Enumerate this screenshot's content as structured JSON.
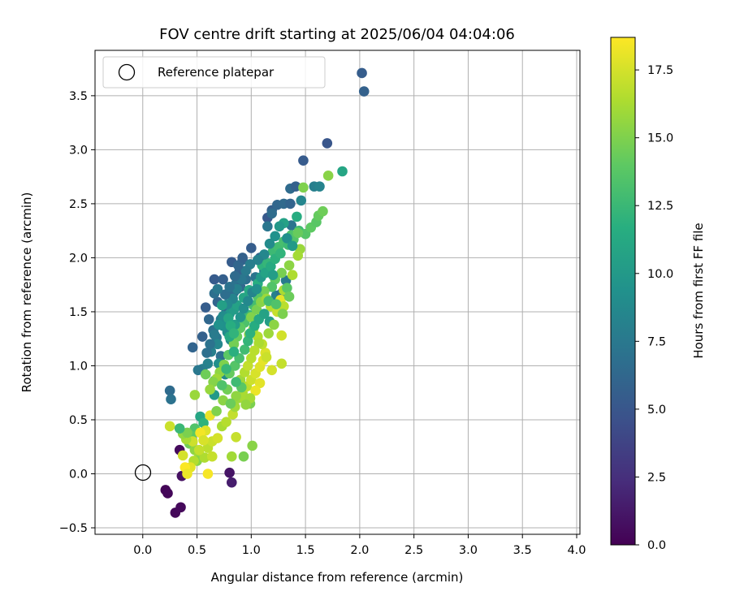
{
  "chart_data": {
    "type": "scatter",
    "title": "FOV centre drift starting at 2025/06/04 04:04:06",
    "xlabel": "Angular distance from reference (arcmin)",
    "ylabel": "Rotation from reference (arcmin)",
    "xlim": [
      -0.44,
      4.03
    ],
    "ylim": [
      -0.56,
      3.92
    ],
    "xticks": [
      "0.0",
      "0.5",
      "1.0",
      "1.5",
      "2.0",
      "2.5",
      "3.0",
      "3.5",
      "4.0"
    ],
    "yticks": [
      "−0.5",
      "0.0",
      "0.5",
      "1.0",
      "1.5",
      "2.0",
      "2.5",
      "3.0",
      "3.5"
    ],
    "grid": true,
    "legend": {
      "placement": "top-left",
      "entries": [
        "Reference platepar"
      ]
    },
    "reference_point": {
      "x": 0.0,
      "y": 0.0
    },
    "colorbar": {
      "label": "Hours from first FF file",
      "colormap": "viridis",
      "range": [
        0.0,
        18.7
      ],
      "ticks": [
        "0.0",
        "2.5",
        "5.0",
        "7.5",
        "10.0",
        "12.5",
        "15.0",
        "17.5"
      ]
    },
    "points": [
      [
        0.21,
        -0.15,
        0.2
      ],
      [
        0.23,
        -0.18,
        0.3
      ],
      [
        0.3,
        -0.36,
        0.3
      ],
      [
        0.35,
        -0.31,
        0.4
      ],
      [
        0.34,
        0.22,
        0.5
      ],
      [
        0.36,
        -0.02,
        0.8
      ],
      [
        0.8,
        0.01,
        1.0
      ],
      [
        0.82,
        -0.08,
        1.5
      ],
      [
        0.25,
        0.77,
        6.5
      ],
      [
        0.26,
        0.69,
        7.0
      ],
      [
        0.46,
        1.17,
        6.0
      ],
      [
        0.55,
        1.27,
        5.8
      ],
      [
        0.58,
        1.54,
        5.5
      ],
      [
        0.66,
        1.8,
        5.3
      ],
      [
        0.74,
        1.8,
        5.6
      ],
      [
        0.82,
        1.96,
        5.4
      ],
      [
        0.89,
        1.87,
        5.7
      ],
      [
        0.92,
        1.98,
        5.9
      ],
      [
        1.0,
        2.09,
        5.5
      ],
      [
        1.08,
        2.0,
        6.0
      ],
      [
        1.15,
        2.37,
        5.2
      ],
      [
        1.19,
        2.44,
        5.6
      ],
      [
        1.24,
        2.49,
        6.2
      ],
      [
        1.3,
        2.5,
        6.4
      ],
      [
        1.36,
        2.5,
        6.0
      ],
      [
        1.36,
        2.64,
        6.5
      ],
      [
        1.41,
        2.66,
        5.8
      ],
      [
        1.48,
        2.9,
        5.3
      ],
      [
        1.7,
        3.06,
        5.0
      ],
      [
        2.02,
        3.71,
        5.5
      ],
      [
        2.04,
        3.54,
        5.8
      ],
      [
        1.58,
        2.66,
        8.0
      ],
      [
        1.63,
        2.66,
        8.3
      ],
      [
        1.37,
        2.3,
        7.2
      ],
      [
        1.46,
        2.53,
        8.5
      ],
      [
        1.84,
        2.8,
        11.0
      ],
      [
        0.65,
        1.33,
        7.0
      ],
      [
        0.68,
        1.26,
        7.3
      ],
      [
        0.72,
        1.43,
        7.8
      ],
      [
        0.63,
        1.13,
        8.0
      ],
      [
        0.6,
        1.02,
        8.3
      ],
      [
        0.55,
        0.97,
        8.0
      ],
      [
        0.51,
        0.96,
        7.5
      ],
      [
        0.72,
        1.09,
        6.8
      ],
      [
        0.77,
        1.5,
        6.5
      ],
      [
        0.84,
        1.68,
        6.6
      ],
      [
        0.86,
        1.76,
        7.0
      ],
      [
        0.9,
        1.73,
        6.3
      ],
      [
        0.95,
        1.8,
        6.8
      ],
      [
        1.04,
        1.82,
        7.2
      ],
      [
        1.12,
        1.88,
        7.5
      ],
      [
        1.19,
        1.73,
        7.8
      ],
      [
        1.23,
        1.65,
        8.0
      ],
      [
        1.28,
        1.67,
        7.0
      ],
      [
        1.32,
        1.79,
        7.6
      ],
      [
        0.78,
        1.31,
        8.8
      ],
      [
        0.81,
        1.24,
        9.0
      ],
      [
        0.7,
        1.02,
        9.2
      ],
      [
        0.66,
        0.86,
        9.5
      ],
      [
        0.76,
        0.92,
        8.9
      ],
      [
        0.66,
        0.73,
        10.0
      ],
      [
        0.69,
        1.2,
        8.6
      ],
      [
        0.74,
        1.37,
        9.3
      ],
      [
        0.8,
        1.48,
        9.8
      ],
      [
        0.84,
        1.52,
        10.2
      ],
      [
        0.87,
        1.56,
        10.6
      ],
      [
        0.93,
        1.63,
        11.0
      ],
      [
        0.98,
        1.7,
        11.3
      ],
      [
        1.06,
        1.76,
        11.7
      ],
      [
        1.1,
        1.93,
        12.0
      ],
      [
        1.15,
        1.95,
        12.3
      ],
      [
        1.2,
        2.06,
        12.6
      ],
      [
        1.25,
        2.1,
        12.9
      ],
      [
        1.3,
        2.15,
        13.1
      ],
      [
        1.37,
        2.21,
        13.3
      ],
      [
        1.44,
        2.25,
        12.8
      ],
      [
        1.42,
        2.38,
        11.5
      ],
      [
        1.5,
        2.22,
        13.6
      ],
      [
        1.55,
        2.28,
        14.0
      ],
      [
        1.6,
        2.33,
        13.8
      ],
      [
        1.62,
        2.39,
        14.2
      ],
      [
        1.66,
        2.43,
        14.5
      ],
      [
        1.71,
        2.76,
        15.3
      ],
      [
        1.48,
        2.65,
        15.0
      ],
      [
        1.45,
        2.08,
        15.8
      ],
      [
        1.43,
        2.02,
        16.1
      ],
      [
        1.38,
        1.84,
        16.4
      ],
      [
        1.35,
        1.93,
        15.4
      ],
      [
        1.28,
        1.86,
        14.8
      ],
      [
        1.22,
        1.8,
        14.1
      ],
      [
        1.19,
        1.73,
        13.5
      ],
      [
        1.12,
        1.69,
        14.6
      ],
      [
        1.06,
        1.64,
        13.7
      ],
      [
        1.02,
        1.56,
        13.0
      ],
      [
        0.98,
        1.47,
        12.5
      ],
      [
        0.94,
        1.4,
        13.3
      ],
      [
        0.9,
        1.35,
        14.0
      ],
      [
        0.87,
        1.27,
        14.3
      ],
      [
        0.84,
        1.2,
        14.7
      ],
      [
        0.79,
        1.1,
        13.9
      ],
      [
        0.75,
        1.01,
        15.0
      ],
      [
        0.71,
        0.94,
        15.5
      ],
      [
        0.68,
        0.88,
        16.0
      ],
      [
        0.65,
        0.85,
        15.2
      ],
      [
        0.62,
        0.78,
        15.7
      ],
      [
        0.58,
        0.92,
        14.5
      ],
      [
        0.53,
        0.53,
        11.0
      ],
      [
        0.56,
        0.47,
        12.0
      ],
      [
        0.48,
        0.42,
        13.5
      ],
      [
        0.45,
        0.35,
        14.0
      ],
      [
        0.43,
        0.28,
        14.6
      ],
      [
        0.48,
        0.22,
        15.5
      ],
      [
        0.52,
        0.18,
        16.0
      ],
      [
        0.5,
        0.12,
        15.2
      ],
      [
        0.57,
        0.15,
        16.4
      ],
      [
        0.6,
        0.24,
        16.8
      ],
      [
        0.64,
        0.3,
        17.2
      ],
      [
        0.69,
        0.33,
        17.5
      ],
      [
        0.73,
        0.44,
        16.2
      ],
      [
        0.77,
        0.48,
        16.6
      ],
      [
        0.83,
        0.55,
        17.0
      ],
      [
        0.85,
        0.62,
        16.0
      ],
      [
        0.88,
        0.7,
        15.8
      ],
      [
        0.92,
        0.75,
        16.3
      ],
      [
        0.96,
        0.81,
        16.8
      ],
      [
        1.0,
        0.87,
        17.3
      ],
      [
        1.04,
        0.93,
        17.6
      ],
      [
        1.08,
        0.99,
        17.8
      ],
      [
        1.11,
        1.05,
        18.0
      ],
      [
        1.13,
        1.12,
        17.7
      ],
      [
        1.1,
        1.2,
        16.9
      ],
      [
        1.06,
        1.27,
        16.5
      ],
      [
        1.02,
        1.34,
        16.1
      ],
      [
        0.98,
        1.29,
        15.6
      ],
      [
        1.0,
        1.45,
        15.1
      ],
      [
        1.05,
        1.52,
        14.8
      ],
      [
        1.09,
        1.59,
        15.3
      ],
      [
        1.14,
        1.62,
        15.9
      ],
      [
        1.18,
        1.55,
        16.6
      ],
      [
        1.24,
        1.5,
        17.1
      ],
      [
        1.27,
        1.61,
        18.0
      ],
      [
        1.3,
        1.7,
        16.3
      ],
      [
        1.28,
        1.28,
        17.4
      ],
      [
        1.28,
        1.02,
        17.0
      ],
      [
        1.3,
        1.55,
        16.7
      ],
      [
        0.86,
        0.34,
        17.1
      ],
      [
        0.82,
        0.16,
        16.0
      ],
      [
        0.93,
        0.16,
        14.8
      ],
      [
        1.01,
        0.26,
        15.3
      ],
      [
        0.62,
        0.54,
        18.1
      ],
      [
        0.58,
        0.4,
        17.8
      ],
      [
        0.53,
        0.38,
        18.4
      ],
      [
        0.56,
        0.31,
        17.6
      ],
      [
        0.52,
        0.22,
        17.0
      ],
      [
        0.47,
        0.12,
        16.5
      ],
      [
        0.44,
        0.06,
        17.9
      ],
      [
        0.39,
        0.06,
        18.6
      ],
      [
        0.41,
        0.0,
        18.2
      ],
      [
        0.46,
        0.3,
        17.3
      ],
      [
        0.37,
        0.17,
        17.5
      ],
      [
        0.4,
        0.32,
        16.2
      ],
      [
        0.37,
        0.37,
        15.6
      ],
      [
        0.41,
        0.38,
        14.9
      ],
      [
        0.64,
        0.16,
        17.1
      ],
      [
        0.6,
        0.0,
        18.5
      ],
      [
        0.25,
        0.44,
        17.2
      ],
      [
        0.34,
        0.42,
        12.5
      ],
      [
        0.48,
        0.73,
        15.8
      ],
      [
        0.68,
        0.58,
        15.0
      ],
      [
        0.74,
        0.68,
        15.4
      ],
      [
        0.78,
        0.78,
        14.6
      ],
      [
        0.8,
        0.93,
        14.2
      ],
      [
        0.85,
        1.0,
        13.6
      ],
      [
        0.89,
        1.07,
        13.1
      ],
      [
        0.94,
        1.15,
        12.8
      ],
      [
        0.97,
        1.23,
        12.2
      ],
      [
        0.99,
        1.3,
        11.9
      ],
      [
        1.03,
        1.37,
        11.5
      ],
      [
        1.07,
        1.43,
        11.1
      ],
      [
        1.12,
        1.48,
        10.7
      ],
      [
        1.17,
        1.41,
        10.3
      ],
      [
        0.9,
        0.87,
        15.9
      ],
      [
        0.94,
        0.94,
        16.5
      ],
      [
        0.97,
        1.0,
        17.0
      ],
      [
        1.0,
        1.07,
        16.7
      ],
      [
        0.94,
        0.69,
        16.2
      ],
      [
        0.86,
        0.72,
        15.5
      ],
      [
        0.81,
        0.65,
        14.4
      ],
      [
        0.99,
        0.65,
        14.9
      ],
      [
        0.91,
        0.8,
        13.8
      ],
      [
        0.86,
        0.85,
        12.7
      ],
      [
        0.73,
        0.82,
        13.4
      ],
      [
        0.77,
        0.97,
        12.4
      ],
      [
        0.84,
        1.13,
        11.8
      ],
      [
        0.8,
        1.27,
        11.2
      ],
      [
        0.85,
        1.38,
        10.4
      ],
      [
        0.9,
        1.45,
        9.6
      ],
      [
        0.93,
        1.53,
        9.1
      ],
      [
        0.97,
        1.6,
        8.7
      ],
      [
        1.01,
        1.68,
        8.4
      ],
      [
        1.05,
        1.71,
        9.2
      ],
      [
        1.09,
        1.82,
        10.0
      ],
      [
        1.13,
        1.86,
        10.8
      ],
      [
        1.18,
        1.92,
        11.4
      ],
      [
        1.22,
        1.99,
        11.9
      ],
      [
        1.27,
        2.04,
        12.1
      ],
      [
        1.34,
        2.12,
        12.7
      ],
      [
        1.39,
        2.17,
        13.5
      ],
      [
        1.43,
        2.23,
        14.3
      ],
      [
        1.3,
        2.32,
        10.6
      ],
      [
        1.22,
        2.2,
        9.4
      ],
      [
        1.17,
        2.13,
        8.9
      ],
      [
        1.12,
        2.03,
        8.6
      ],
      [
        1.06,
        1.98,
        8.2
      ],
      [
        0.99,
        1.94,
        7.9
      ],
      [
        0.95,
        1.88,
        7.6
      ],
      [
        0.91,
        1.8,
        7.4
      ],
      [
        0.87,
        1.71,
        8.1
      ],
      [
        0.83,
        1.62,
        8.4
      ],
      [
        0.78,
        1.57,
        8.7
      ],
      [
        0.74,
        1.46,
        9.0
      ],
      [
        0.7,
        1.38,
        9.4
      ],
      [
        0.66,
        1.29,
        7.7
      ],
      [
        0.62,
        1.2,
        7.1
      ],
      [
        0.59,
        1.12,
        6.9
      ],
      [
        0.61,
        1.43,
        6.2
      ],
      [
        0.69,
        1.59,
        6.0
      ],
      [
        0.76,
        1.66,
        6.7
      ],
      [
        0.8,
        1.73,
        7.0
      ],
      [
        0.85,
        1.83,
        6.4
      ],
      [
        0.88,
        1.93,
        6.1
      ],
      [
        0.92,
        2.0,
        5.8
      ],
      [
        0.66,
        1.67,
        6.8
      ],
      [
        0.69,
        1.71,
        7.5
      ],
      [
        0.73,
        1.56,
        10.5
      ],
      [
        0.79,
        1.44,
        11.0
      ],
      [
        0.81,
        1.37,
        11.6
      ],
      [
        0.84,
        1.3,
        12.1
      ],
      [
        1.15,
        2.29,
        7.3
      ],
      [
        1.19,
        2.41,
        6.6
      ],
      [
        1.26,
        2.29,
        9.9
      ],
      [
        1.33,
        2.18,
        9.2
      ],
      [
        1.38,
        2.11,
        10.1
      ],
      [
        1.2,
        1.84,
        10.3
      ],
      [
        1.16,
        1.6,
        12.9
      ],
      [
        1.23,
        1.57,
        13.4
      ],
      [
        1.33,
        1.72,
        13.8
      ],
      [
        1.35,
        1.64,
        14.4
      ],
      [
        1.29,
        1.48,
        14.9
      ],
      [
        1.21,
        1.38,
        15.4
      ],
      [
        1.16,
        1.3,
        15.9
      ],
      [
        1.07,
        1.21,
        16.3
      ],
      [
        1.03,
        1.14,
        16.7
      ],
      [
        1.14,
        1.08,
        17.2
      ],
      [
        1.19,
        0.96,
        17.5
      ],
      [
        1.08,
        0.84,
        17.9
      ],
      [
        1.04,
        0.77,
        18.2
      ],
      [
        0.99,
        0.7,
        16.1
      ],
      [
        0.95,
        0.64,
        15.6
      ]
    ]
  }
}
